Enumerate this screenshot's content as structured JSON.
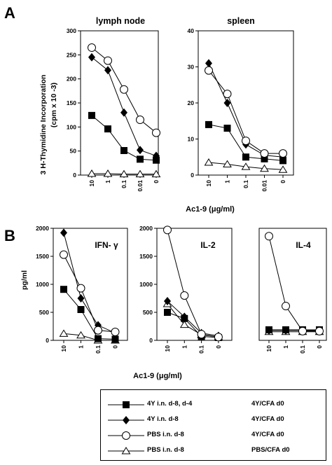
{
  "panel_letters": [
    "A",
    "B"
  ],
  "chart_data": [
    {
      "type": "line",
      "panel": "A",
      "title": "lymph node",
      "ylabel_line1": "3 H-Thymidine Incorporation",
      "ylabel_line2": "(cpm x 10 -3)",
      "ylim": [
        0,
        300
      ],
      "yticks": [
        "0",
        "50",
        "100",
        "150",
        "200",
        "250",
        "300"
      ],
      "categories": [
        "10",
        "1",
        "0.1",
        "0.01",
        "0"
      ],
      "series": [
        {
          "name": "4Y i.n. d-8, d-4",
          "marker": "square",
          "values": [
            124,
            96,
            51,
            33,
            31
          ]
        },
        {
          "name": "4Y i.n. d-8",
          "marker": "diamond",
          "values": [
            245,
            218,
            130,
            52,
            40
          ]
        },
        {
          "name": "PBS i.n. d-8",
          "marker": "circle",
          "values": [
            265,
            238,
            178,
            115,
            88
          ]
        },
        {
          "name": "PBS i.n. d-8",
          "marker": "triangle",
          "values": [
            3,
            3,
            2,
            2,
            2
          ]
        }
      ]
    },
    {
      "type": "line",
      "panel": "A",
      "title": "spleen",
      "ylim": [
        0,
        40
      ],
      "yticks": [
        "0",
        "10",
        "20",
        "30",
        "40"
      ],
      "categories": [
        "10",
        "1",
        "0.1",
        "0.01",
        "0"
      ],
      "series": [
        {
          "name": "4Y i.n. d-8, d-4",
          "marker": "square",
          "values": [
            14,
            13,
            5,
            4.5,
            4
          ]
        },
        {
          "name": "4Y i.n. d-8",
          "marker": "diamond",
          "values": [
            31,
            20,
            8.5,
            5.5,
            5
          ]
        },
        {
          "name": "PBS i.n. d-8",
          "marker": "circle",
          "values": [
            29,
            22.5,
            9.5,
            6,
            6
          ]
        },
        {
          "name": "PBS i.n. d-8",
          "marker": "triangle",
          "values": [
            3.5,
            3,
            2.3,
            1.8,
            1.5
          ]
        }
      ]
    },
    {
      "type": "line",
      "panel": "B",
      "title": "IFN- γ",
      "ylabel": "pg/ml",
      "ylim": [
        0,
        2000
      ],
      "yticks": [
        "0",
        "500",
        "1000",
        "1500",
        "2000"
      ],
      "categories": [
        "10",
        "1",
        "0.1",
        "0"
      ],
      "series": [
        {
          "name": "4Y i.n. d-8, d-4",
          "marker": "square",
          "values": [
            910,
            550,
            30,
            20
          ]
        },
        {
          "name": "4Y i.n. d-8",
          "marker": "diamond",
          "values": [
            1920,
            750,
            270,
            130
          ]
        },
        {
          "name": "PBS i.n. d-8",
          "marker": "circle",
          "values": [
            1530,
            930,
            180,
            150
          ]
        },
        {
          "name": "PBS i.n. d-8",
          "marker": "triangle",
          "values": [
            120,
            90,
            0,
            0
          ]
        }
      ]
    },
    {
      "type": "line",
      "panel": "B",
      "title": "IL-2",
      "ylim": [
        0,
        2000
      ],
      "yticks": [
        "0",
        "500",
        "1000",
        "1500",
        "2000"
      ],
      "categories": [
        "10",
        "1",
        "0.1",
        "0"
      ],
      "series": [
        {
          "name": "4Y i.n. d-8, d-4",
          "marker": "square",
          "values": [
            500,
            390,
            70,
            50
          ]
        },
        {
          "name": "4Y i.n. d-8",
          "marker": "diamond",
          "values": [
            700,
            420,
            130,
            80
          ]
        },
        {
          "name": "PBS i.n. d-8",
          "marker": "circle",
          "values": [
            1970,
            800,
            110,
            60
          ]
        },
        {
          "name": "PBS i.n. d-8",
          "marker": "triangle",
          "values": [
            650,
            280,
            100,
            60
          ]
        }
      ]
    },
    {
      "type": "line",
      "panel": "B",
      "title": "IL-4",
      "ylim": [
        0,
        85
      ],
      "yticks": [],
      "categories": [
        "10",
        "1",
        "0.1",
        "0"
      ],
      "series": [
        {
          "name": "4Y i.n. d-8, d-4",
          "marker": "square",
          "values": [
            8,
            8,
            8,
            8
          ]
        },
        {
          "name": "4Y i.n. d-8",
          "marker": "diamond",
          "values": [
            7.5,
            7.5,
            7.5,
            7.5
          ]
        },
        {
          "name": "PBS i.n. d-8",
          "marker": "circle",
          "values": [
            79,
            26,
            7,
            7
          ]
        },
        {
          "name": "PBS i.n. d-8",
          "marker": "triangle",
          "values": [
            6.5,
            6.5,
            6.5,
            6.5
          ]
        }
      ]
    }
  ],
  "xlabel_A": "Ac1-9  (μg/ml)",
  "xlabel_B": "Ac1-9  (μg/ml)",
  "legend": {
    "rows": [
      {
        "marker": "square",
        "group": "4Y i.n. d-8, d-4",
        "immunization": "4Y/CFA d0"
      },
      {
        "marker": "diamond",
        "group": "4Y i.n. d-8",
        "immunization": "4Y/CFA d0"
      },
      {
        "marker": "circle",
        "group": "PBS i.n. d-8",
        "immunization": "4Y/CFA d0"
      },
      {
        "marker": "triangle",
        "group": "PBS i.n. d-8",
        "immunization": "PBS/CFA d0"
      }
    ]
  }
}
